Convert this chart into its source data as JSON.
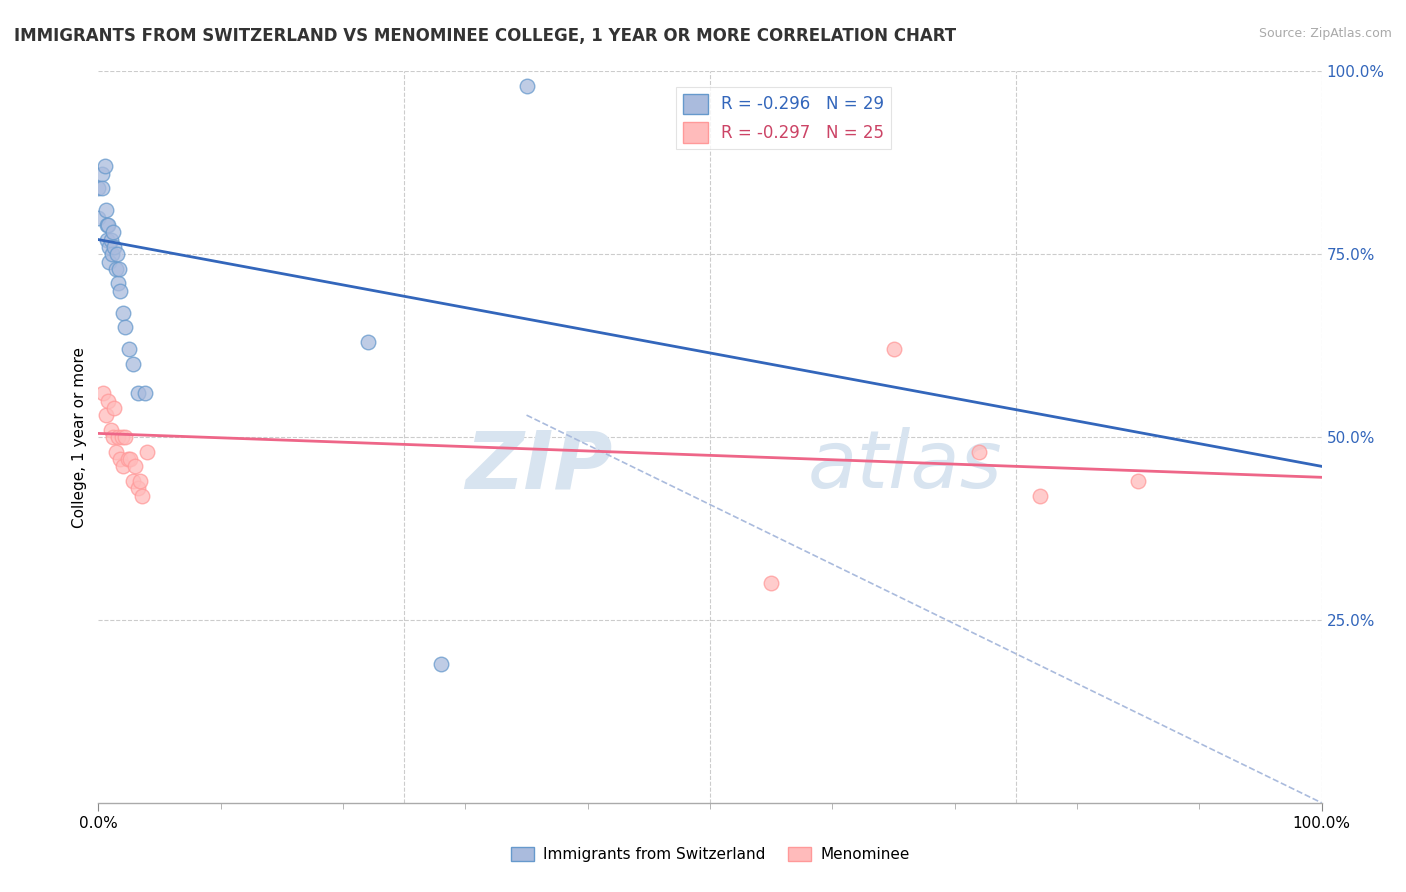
{
  "title": "IMMIGRANTS FROM SWITZERLAND VS MENOMINEE COLLEGE, 1 YEAR OR MORE CORRELATION CHART",
  "source": "Source: ZipAtlas.com",
  "ylabel": "College, 1 year or more",
  "xlabel": "",
  "xlim": [
    0.0,
    1.0
  ],
  "ylim": [
    0.0,
    1.0
  ],
  "grid_color": "#cccccc",
  "blue_color": "#6699cc",
  "pink_color": "#ff9999",
  "blue_fill": "#aabbdd",
  "pink_fill": "#ffbbbb",
  "legend_blue_label": "R = -0.296   N = 29",
  "legend_pink_label": "R = -0.297   N = 25",
  "legend_series1": "Immigrants from Switzerland",
  "legend_series2": "Menominee",
  "blue_scatter_x": [
    0.0,
    0.0,
    0.003,
    0.003,
    0.005,
    0.006,
    0.007,
    0.007,
    0.008,
    0.009,
    0.009,
    0.01,
    0.011,
    0.012,
    0.013,
    0.014,
    0.015,
    0.016,
    0.017,
    0.018,
    0.02,
    0.022,
    0.025,
    0.028,
    0.032,
    0.038,
    0.22,
    0.28,
    0.35
  ],
  "blue_scatter_y": [
    0.84,
    0.8,
    0.86,
    0.84,
    0.87,
    0.81,
    0.79,
    0.77,
    0.79,
    0.76,
    0.74,
    0.77,
    0.75,
    0.78,
    0.76,
    0.73,
    0.75,
    0.71,
    0.73,
    0.7,
    0.67,
    0.65,
    0.62,
    0.6,
    0.56,
    0.56,
    0.63,
    0.19,
    0.98
  ],
  "pink_scatter_x": [
    0.004,
    0.006,
    0.008,
    0.01,
    0.012,
    0.013,
    0.014,
    0.016,
    0.018,
    0.019,
    0.02,
    0.022,
    0.024,
    0.026,
    0.028,
    0.03,
    0.032,
    0.034,
    0.036,
    0.04,
    0.55,
    0.65,
    0.72,
    0.77,
    0.85
  ],
  "pink_scatter_y": [
    0.56,
    0.53,
    0.55,
    0.51,
    0.5,
    0.54,
    0.48,
    0.5,
    0.47,
    0.5,
    0.46,
    0.5,
    0.47,
    0.47,
    0.44,
    0.46,
    0.43,
    0.44,
    0.42,
    0.48,
    0.3,
    0.62,
    0.48,
    0.42,
    0.44
  ],
  "blue_line_x": [
    0.0,
    1.0
  ],
  "blue_line_y": [
    0.77,
    0.46
  ],
  "pink_line_x": [
    0.0,
    1.0
  ],
  "pink_line_y": [
    0.505,
    0.445
  ],
  "dash_line_x": [
    0.35,
    1.0
  ],
  "dash_line_y": [
    0.53,
    0.0
  ],
  "x_ticks_major": [
    0.0,
    1.0
  ],
  "x_ticks_minor": [
    0.1,
    0.2,
    0.3,
    0.4,
    0.5,
    0.6,
    0.7,
    0.8,
    0.9
  ],
  "y_ticks_right": [
    0.25,
    0.5,
    0.75,
    1.0
  ],
  "y_tick_labels_right": [
    "25.0%",
    "50.0%",
    "75.0%",
    "100.0%"
  ]
}
